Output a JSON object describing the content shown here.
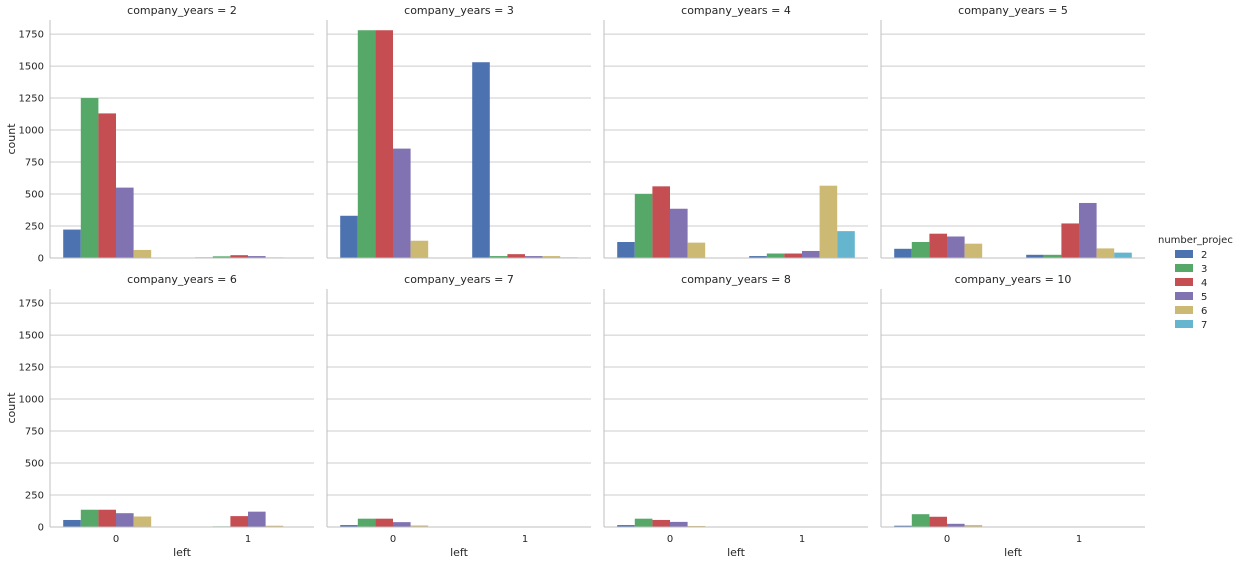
{
  "chart_data": {
    "type": "bar",
    "layout": "faceted grid, 2 rows x 4 columns, shared y axis",
    "facet_variable": "company_years",
    "xlabel": "left",
    "ylabel": "count",
    "categories": [
      "0",
      "1"
    ],
    "ylim": [
      0,
      1860
    ],
    "yticks": [
      0,
      250,
      500,
      750,
      1000,
      1250,
      1500,
      1750
    ],
    "grid": "horizontal",
    "legend": {
      "title": "number_project",
      "placement": "right",
      "entries": [
        "2",
        "3",
        "4",
        "5",
        "6",
        "7"
      ]
    },
    "series_colors": [
      "#4c72b0",
      "#55a868",
      "#c44e52",
      "#8172b2",
      "#ccb974",
      "#64b5cd"
    ],
    "facets": [
      {
        "title": "company_years = 2",
        "values": {
          "0": [
            222,
            1250,
            1130,
            550,
            63,
            0
          ],
          "1": [
            5,
            13,
            22,
            15,
            5,
            3
          ]
        }
      },
      {
        "title": "company_years = 3",
        "values": {
          "0": [
            330,
            1780,
            1780,
            855,
            135,
            0
          ],
          "1": [
            1530,
            15,
            30,
            15,
            15,
            5
          ]
        }
      },
      {
        "title": "company_years = 4",
        "values": {
          "0": [
            125,
            500,
            560,
            385,
            120,
            0
          ],
          "1": [
            15,
            35,
            35,
            55,
            565,
            210
          ]
        }
      },
      {
        "title": "company_years = 5",
        "values": {
          "0": [
            72,
            125,
            190,
            168,
            112,
            0
          ],
          "1": [
            25,
            25,
            270,
            430,
            75,
            42
          ]
        }
      },
      {
        "title": "company_years = 6",
        "values": {
          "0": [
            55,
            135,
            135,
            108,
            82,
            0
          ],
          "1": [
            0,
            5,
            85,
            120,
            10,
            0
          ]
        }
      },
      {
        "title": "company_years = 7",
        "values": {
          "0": [
            15,
            65,
            65,
            38,
            12,
            0
          ],
          "1": [
            0,
            0,
            0,
            0,
            0,
            0
          ]
        }
      },
      {
        "title": "company_years = 8",
        "values": {
          "0": [
            15,
            65,
            55,
            40,
            8,
            0
          ],
          "1": [
            0,
            0,
            0,
            0,
            0,
            0
          ]
        }
      },
      {
        "title": "company_years = 10",
        "values": {
          "0": [
            10,
            100,
            80,
            25,
            15,
            0
          ],
          "1": [
            0,
            0,
            0,
            0,
            0,
            0
          ]
        }
      }
    ]
  }
}
